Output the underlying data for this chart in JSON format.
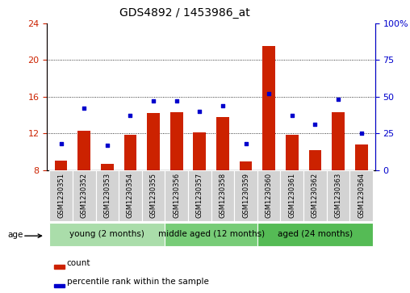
{
  "title": "GDS4892 / 1453986_at",
  "samples": [
    "GSM1230351",
    "GSM1230352",
    "GSM1230353",
    "GSM1230354",
    "GSM1230355",
    "GSM1230356",
    "GSM1230357",
    "GSM1230358",
    "GSM1230359",
    "GSM1230360",
    "GSM1230361",
    "GSM1230362",
    "GSM1230363",
    "GSM1230364"
  ],
  "count_values": [
    9.0,
    12.3,
    8.7,
    11.8,
    14.2,
    14.3,
    12.1,
    13.8,
    8.9,
    21.5,
    11.8,
    10.2,
    14.3,
    10.8
  ],
  "percentile_values": [
    18,
    42,
    17,
    37,
    47,
    47,
    40,
    44,
    18,
    52,
    37,
    31,
    48,
    25
  ],
  "ylim_left": [
    8,
    24
  ],
  "ylim_right": [
    0,
    100
  ],
  "yticks_left": [
    8,
    12,
    16,
    20,
    24
  ],
  "yticks_right": [
    0,
    25,
    50,
    75,
    100
  ],
  "ytick_labels_right": [
    "0",
    "25",
    "50",
    "75",
    "100%"
  ],
  "bar_color": "#cc2200",
  "dot_color": "#0000cc",
  "bar_bottom": 8,
  "groups": [
    {
      "label": "young (2 months)",
      "start": 0,
      "end": 5,
      "color": "#aaddaa"
    },
    {
      "label": "middle aged (12 months)",
      "start": 5,
      "end": 9,
      "color": "#77cc77"
    },
    {
      "label": "aged (24 months)",
      "start": 9,
      "end": 14,
      "color": "#55bb55"
    }
  ],
  "legend_count_label": "count",
  "legend_pct_label": "percentile rank within the sample",
  "age_label": "age",
  "bar_width": 0.55,
  "title_fontsize": 10,
  "tick_fontsize": 8,
  "label_fontsize": 6,
  "group_fontsize": 7.5,
  "legend_fontsize": 7.5
}
